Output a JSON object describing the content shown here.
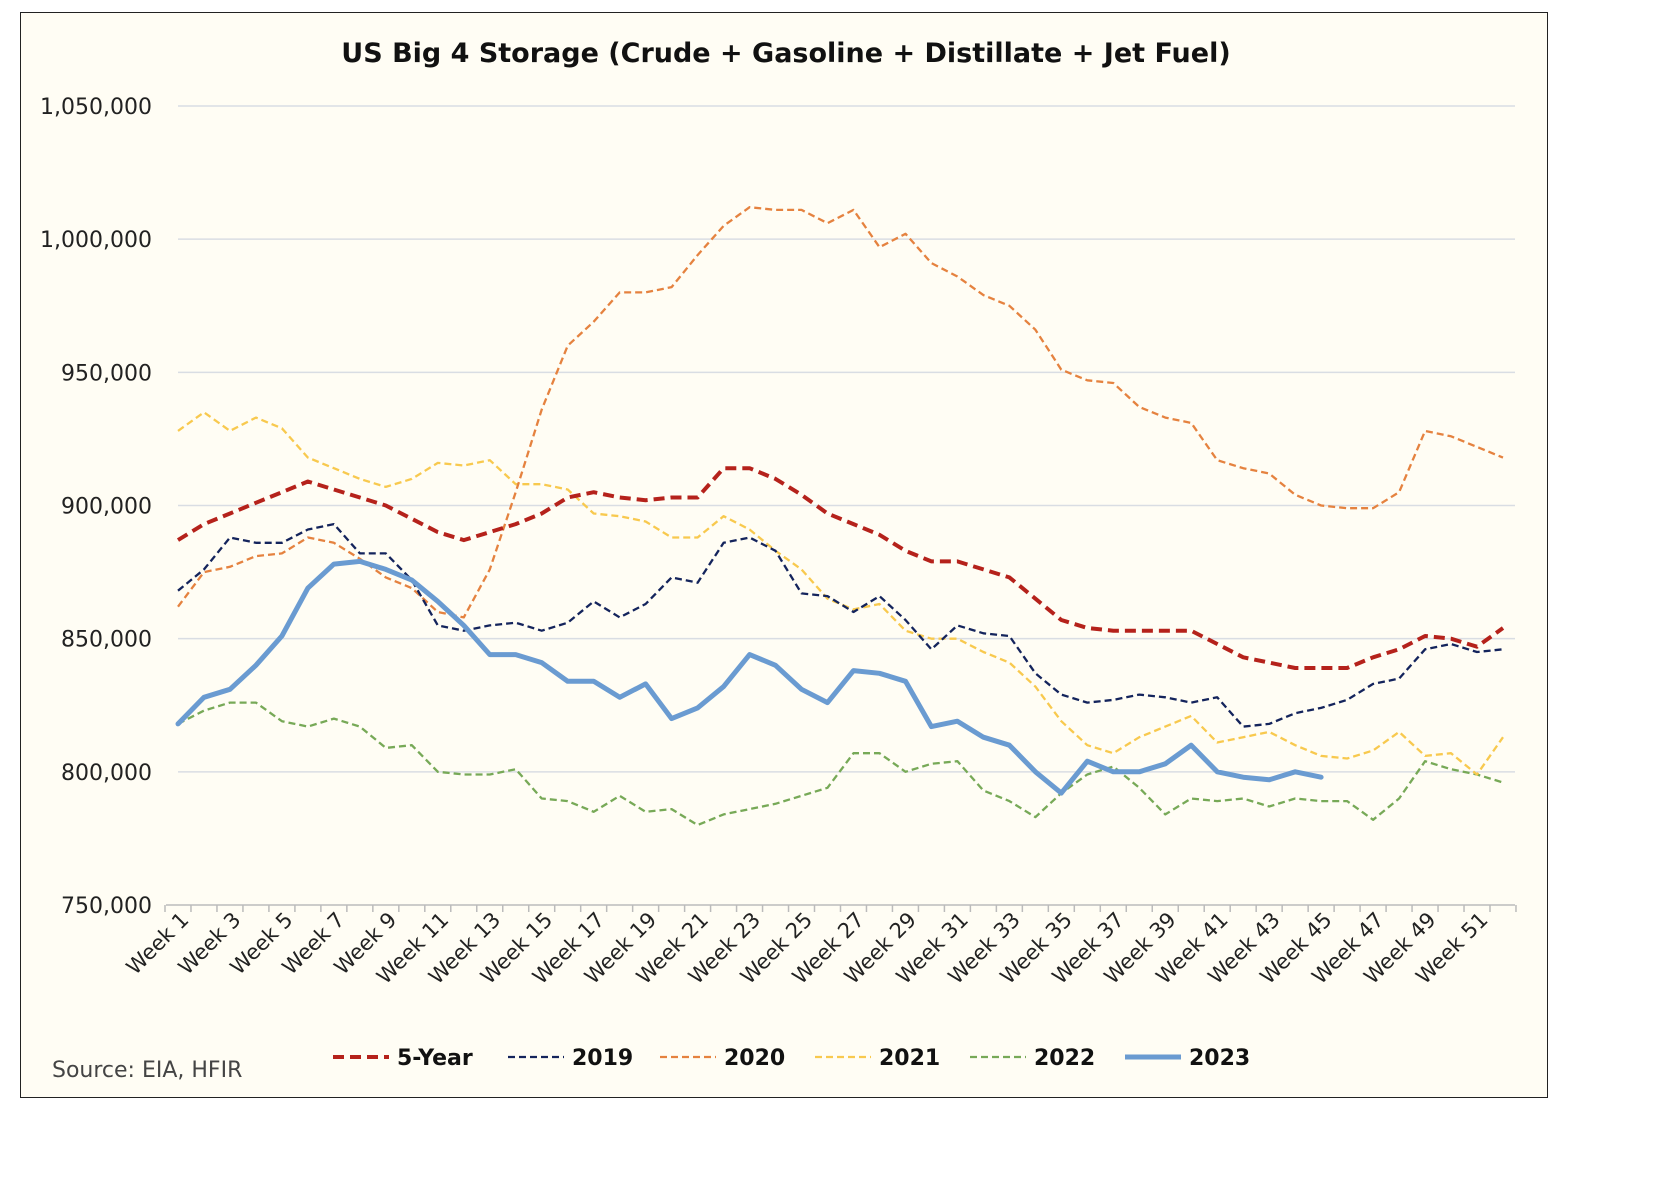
{
  "chart_data": {
    "type": "line",
    "title": "US Big 4 Storage (Crude + Gasoline + Distillate + Jet Fuel)",
    "source": "Source: EIA, HFIR",
    "xlabel": "",
    "ylabel": "",
    "ylim": [
      750000,
      1050000
    ],
    "yticks": [
      750000,
      800000,
      850000,
      900000,
      950000,
      1000000,
      1050000
    ],
    "ytick_labels": [
      "750,000",
      "800,000",
      "850,000",
      "900,000",
      "950,000",
      "1,000,000",
      "1,050,000"
    ],
    "grid": "horizontal",
    "legend": "bottom",
    "x_tick_labels": [
      "Week 1",
      "Week 3",
      "Week 5",
      "Week 7",
      "Week 9",
      "Week 11",
      "Week 13",
      "Week 15",
      "Week 17",
      "Week 19",
      "Week 21",
      "Week 23",
      "Week 25",
      "Week 27",
      "Week 29",
      "Week 31",
      "Week 33",
      "Week 35",
      "Week 37",
      "Week 39",
      "Week 41",
      "Week 43",
      "Week 45",
      "Week 47",
      "Week 49",
      "Week 51"
    ],
    "weeks": 52,
    "series": [
      {
        "name": "5-Year",
        "color": "#b5221b",
        "style": "dashed-thick",
        "values": [
          887000,
          893000,
          897000,
          901000,
          905000,
          909000,
          906000,
          903000,
          900000,
          895000,
          890000,
          887000,
          890000,
          893000,
          897000,
          903000,
          905000,
          903000,
          902000,
          903000,
          903000,
          914000,
          914000,
          910000,
          904000,
          897000,
          893000,
          889000,
          883000,
          879000,
          879000,
          876000,
          873000,
          865000,
          857000,
          854000,
          853000,
          853000,
          853000,
          853000,
          848000,
          843000,
          841000,
          839000,
          839000,
          839000,
          843000,
          846000,
          851000,
          850000,
          847000,
          854000
        ]
      },
      {
        "name": "2019",
        "color": "#14245c",
        "style": "dashed",
        "values": [
          868000,
          876000,
          888000,
          886000,
          886000,
          891000,
          893000,
          882000,
          882000,
          872000,
          855000,
          853000,
          855000,
          856000,
          853000,
          856000,
          864000,
          858000,
          863000,
          873000,
          871000,
          886000,
          888000,
          883000,
          867000,
          866000,
          860000,
          866000,
          857000,
          846000,
          855000,
          852000,
          851000,
          837000,
          829000,
          826000,
          827000,
          829000,
          828000,
          826000,
          828000,
          817000,
          818000,
          822000,
          824000,
          827000,
          833000,
          835000,
          846000,
          848000,
          845000,
          846000
        ]
      },
      {
        "name": "2020",
        "color": "#e5823f",
        "style": "dashed",
        "values": [
          862000,
          875000,
          877000,
          881000,
          882000,
          888000,
          886000,
          880000,
          873000,
          869000,
          860000,
          858000,
          876000,
          905000,
          936000,
          960000,
          969000,
          980000,
          980000,
          982000,
          994000,
          1005000,
          1012000,
          1011000,
          1011000,
          1006000,
          1011000,
          997000,
          1002000,
          991000,
          986000,
          979000,
          975000,
          966000,
          951000,
          947000,
          946000,
          937000,
          933000,
          931000,
          917000,
          914000,
          912000,
          904000,
          900000,
          899000,
          899000,
          905000,
          928000,
          926000,
          922000,
          918000
        ]
      },
      {
        "name": "2021",
        "color": "#f8c94e",
        "style": "dashed",
        "values": [
          928000,
          935000,
          928000,
          933000,
          929000,
          918000,
          914000,
          910000,
          907000,
          910000,
          916000,
          915000,
          917000,
          908000,
          908000,
          906000,
          897000,
          896000,
          894000,
          888000,
          888000,
          896000,
          891000,
          883000,
          876000,
          865000,
          861000,
          863000,
          853000,
          850000,
          850000,
          845000,
          841000,
          832000,
          819000,
          810000,
          807000,
          813000,
          817000,
          821000,
          811000,
          813000,
          815000,
          810000,
          806000,
          805000,
          808000,
          815000,
          806000,
          807000,
          799000,
          813000
        ]
      },
      {
        "name": "2022",
        "color": "#77a957",
        "style": "dashed",
        "values": [
          818000,
          823000,
          826000,
          826000,
          819000,
          817000,
          820000,
          817000,
          809000,
          810000,
          800000,
          799000,
          799000,
          801000,
          790000,
          789000,
          785000,
          791000,
          785000,
          786000,
          780000,
          784000,
          786000,
          788000,
          791000,
          794000,
          807000,
          807000,
          800000,
          803000,
          804000,
          793000,
          789000,
          783000,
          792000,
          799000,
          802000,
          794000,
          784000,
          790000,
          789000,
          790000,
          787000,
          790000,
          789000,
          789000,
          782000,
          790000,
          804000,
          801000,
          799000,
          796000
        ]
      },
      {
        "name": "2023",
        "color": "#6a9bd1",
        "style": "solid-thick",
        "values": [
          818000,
          828000,
          831000,
          840000,
          851000,
          869000,
          878000,
          879000,
          876000,
          872000,
          864000,
          855000,
          844000,
          844000,
          841000,
          834000,
          834000,
          828000,
          833000,
          820000,
          824000,
          832000,
          844000,
          840000,
          831000,
          826000,
          838000,
          837000,
          834000,
          817000,
          819000,
          813000,
          810000,
          800000,
          792000,
          804000,
          800000,
          800000,
          803000,
          810000,
          800000,
          798000,
          797000,
          800000,
          798000
        ]
      }
    ]
  }
}
